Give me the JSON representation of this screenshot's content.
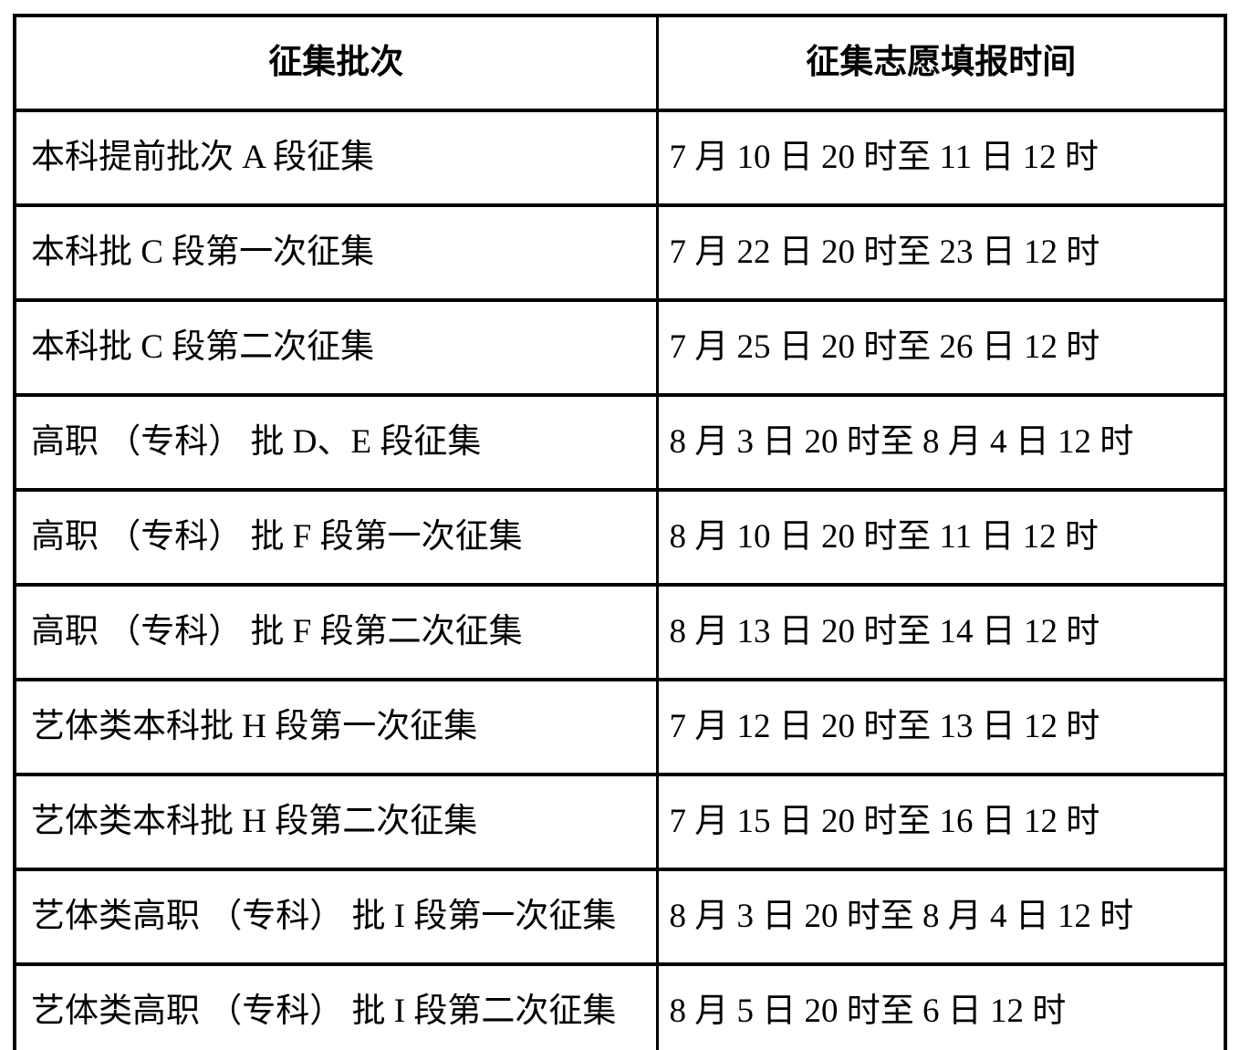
{
  "page": {
    "background_color": "#ffffff",
    "text_color": "#000000",
    "border_color": "#000000"
  },
  "table": {
    "headers": {
      "batch": "征集批次",
      "time": "征集志愿填报时间"
    },
    "rows": [
      {
        "batch": "本科提前批次 A 段征集",
        "time": "7 月 10 日 20 时至 11 日 12 时"
      },
      {
        "batch": "本科批 C 段第一次征集",
        "time": "7 月 22 日 20 时至 23 日 12 时"
      },
      {
        "batch": "本科批 C 段第二次征集",
        "time": "7 月 25 日 20 时至 26 日 12 时"
      },
      {
        "batch": "高职 （专科） 批 D、E 段征集",
        "time": "8 月 3 日 20 时至 8 月 4 日 12 时"
      },
      {
        "batch": "高职 （专科） 批 F 段第一次征集",
        "time": "8 月 10 日 20 时至 11 日 12 时"
      },
      {
        "batch": "高职 （专科） 批 F 段第二次征集",
        "time": "8 月 13 日 20 时至 14 日 12 时"
      },
      {
        "batch": "艺体类本科批 H 段第一次征集",
        "time": "7 月 12 日 20 时至 13 日 12 时"
      },
      {
        "batch": "艺体类本科批 H 段第二次征集",
        "time": "7 月 15 日 20 时至 16 日 12 时"
      },
      {
        "batch": "艺体类高职 （专科） 批 I 段第一次征集",
        "time": "8 月 3 日 20 时至 8 月 4 日 12 时"
      },
      {
        "batch": "艺体类高职 （专科） 批 I 段第二次征集",
        "time": "8 月 5 日 20 时至 6 日 12 时"
      }
    ]
  }
}
